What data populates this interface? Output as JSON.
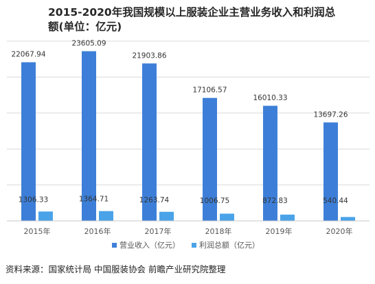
{
  "chart_data": {
    "type": "bar",
    "title": "2015-2020年我国规模以上服装企业主营业务收入和利润总额(单位：亿元)",
    "categories": [
      "2015年",
      "2016年",
      "2017年",
      "2018年",
      "2019年",
      "2020年"
    ],
    "series": [
      {
        "name": "营业收入（亿元）",
        "values": [
          22067.94,
          23605.09,
          21903.86,
          17106.57,
          16010.33,
          13697.26
        ],
        "labels": [
          "22067.94",
          "23605.09",
          "21903.86",
          "17106.57",
          "16010.33",
          "13697.26"
        ],
        "color": "#3d7fd8"
      },
      {
        "name": "利润总额（亿元）",
        "values": [
          1306.33,
          1364.71,
          1263.74,
          1006.75,
          872.83,
          540.44
        ],
        "labels": [
          "1306.33",
          "1364.71",
          "1263.74",
          "1006.75",
          "872.83",
          "540.44"
        ],
        "color": "#4aa3e8"
      }
    ],
    "ylim": [
      0,
      25000
    ],
    "grid": true,
    "legend": "bottom"
  },
  "source": "资料来源：国家统计局 中国服装协会 前瞻产业研究院整理"
}
